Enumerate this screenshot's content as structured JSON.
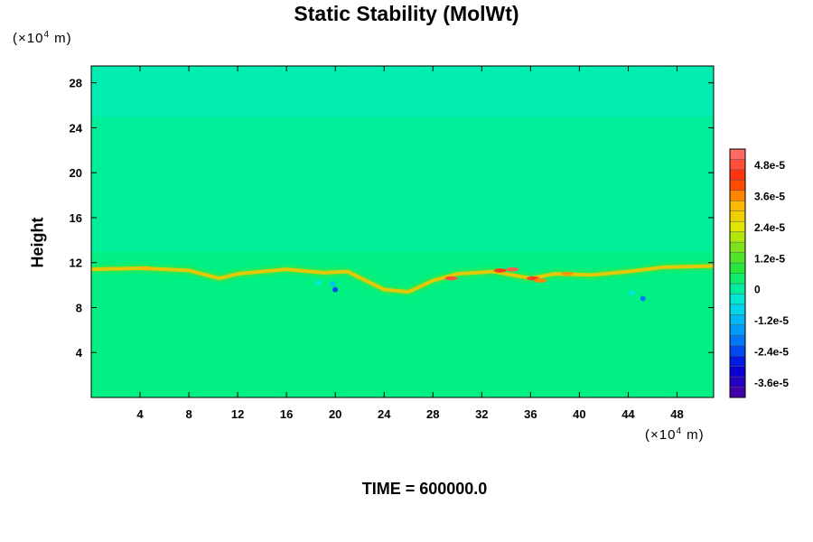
{
  "chart_data": {
    "type": "heatmap",
    "title": "Static Stability (MolWt)",
    "ylabel": "Height",
    "xlabel": "",
    "y_unit": "(×10⁴ m)",
    "x_unit": "(×10⁴ m)",
    "x_range": [
      0,
      51
    ],
    "y_range": [
      0,
      29.5
    ],
    "x_ticks": [
      "4",
      "8",
      "12",
      "16",
      "20",
      "24",
      "28",
      "32",
      "36",
      "40",
      "44",
      "48"
    ],
    "x_tick_values": [
      4,
      8,
      12,
      16,
      20,
      24,
      28,
      32,
      36,
      40,
      44,
      48
    ],
    "y_ticks": [
      "4",
      "8",
      "12",
      "16",
      "20",
      "24",
      "28"
    ],
    "y_tick_values": [
      4,
      8,
      12,
      16,
      20,
      24,
      28
    ],
    "colorbar": {
      "min": -4.2e-05,
      "max": 5.4e-05,
      "labels": [
        "4.8e-5",
        "3.6e-5",
        "2.4e-5",
        "1.2e-5",
        "0",
        "-1.2e-5",
        "-2.4e-5",
        "-3.6e-5"
      ],
      "label_values": [
        4.8e-05,
        3.6e-05,
        2.4e-05,
        1.2e-05,
        0,
        -1.2e-05,
        -2.4e-05,
        -3.6e-05
      ]
    },
    "background_value": 2e-06,
    "upper_layer_value": -1e-06,
    "upper_layer_range": [
      13,
      25
    ],
    "feature_band": {
      "description_note": "",
      "points": [
        [
          0,
          11.4
        ],
        [
          4,
          11.5
        ],
        [
          8,
          11.3
        ],
        [
          10.5,
          10.6
        ],
        [
          12,
          11.0
        ],
        [
          16,
          11.4
        ],
        [
          19,
          11.1
        ],
        [
          21,
          11.2
        ],
        [
          24,
          9.6
        ],
        [
          26,
          9.4
        ],
        [
          28,
          10.4
        ],
        [
          30,
          11.0
        ],
        [
          33,
          11.2
        ],
        [
          36,
          10.6
        ],
        [
          38,
          11.0
        ],
        [
          41,
          10.9
        ],
        [
          44,
          11.2
        ],
        [
          47,
          11.6
        ],
        [
          51,
          11.7
        ]
      ],
      "value": 3e-05
    },
    "hot_spots": [
      [
        4.5,
        11.5,
        3.2e-05
      ],
      [
        29.5,
        10.6,
        4.8e-05
      ],
      [
        33.5,
        11.3,
        4.5e-05
      ],
      [
        34.5,
        11.4,
        5e-05
      ],
      [
        36.2,
        10.6,
        4.6e-05
      ],
      [
        39.0,
        11.0,
        3.5e-05
      ],
      [
        36.8,
        10.4,
        3.6e-05
      ]
    ],
    "cold_spots": [
      [
        20.0,
        9.6,
        -2.4e-05
      ],
      [
        19.8,
        10.1,
        -1e-05
      ],
      [
        18.6,
        10.2,
        -5e-06
      ],
      [
        45.2,
        8.8,
        -2e-05
      ],
      [
        44.3,
        9.3,
        -6e-06
      ]
    ],
    "time_label": "TIME = 600000.0"
  }
}
